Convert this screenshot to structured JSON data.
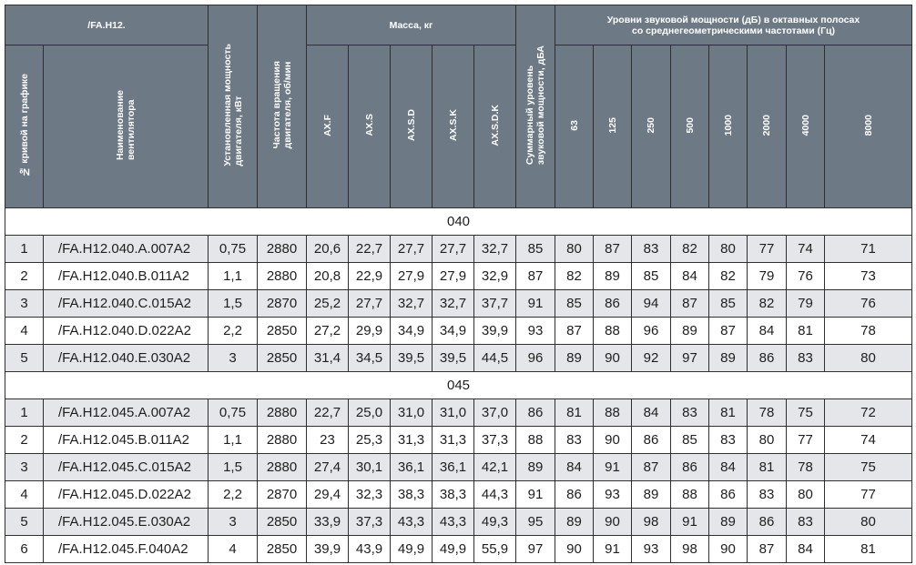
{
  "header": {
    "series": "/FA.H12.",
    "mass_group": "Масса, кг",
    "sound_group_line1": "Уровни звуковой мощности (дБ) в октавных полосах",
    "sound_group_line2": "со среднегеометрическими частотами (Гц)",
    "curve_no": "№ кривой на графике",
    "fan_name_line1": "Наименование",
    "fan_name_line2": "вентилятора",
    "power_line1": "Установленная мощность",
    "power_line2": "двигателя, кВт",
    "speed_line1": "Частота вращения",
    "speed_line2": "двигателя, об/мин",
    "mass_cols": [
      "AX.F",
      "AX.S",
      "AX.S.D",
      "AX.S.K",
      "AX.S.D.K"
    ],
    "total_sound_line1": "Суммарный уровень",
    "total_sound_line2": "звуковой мощности, дБА",
    "freq_cols": [
      "63",
      "125",
      "250",
      "500",
      "1000",
      "2000",
      "4000",
      "8000"
    ]
  },
  "groups": [
    {
      "label": "040",
      "rows": [
        [
          "1",
          "/FA.H12.040.A.007A2",
          "0,75",
          "2880",
          "20,6",
          "22,7",
          "27,7",
          "27,7",
          "32,7",
          "85",
          "80",
          "87",
          "83",
          "82",
          "80",
          "77",
          "74",
          "71"
        ],
        [
          "2",
          "/FA.H12.040.B.011A2",
          "1,1",
          "2880",
          "20,8",
          "22,9",
          "27,9",
          "27,9",
          "32,9",
          "87",
          "82",
          "89",
          "85",
          "84",
          "82",
          "79",
          "76",
          "73"
        ],
        [
          "3",
          "/FA.H12.040.C.015A2",
          "1,5",
          "2870",
          "25,2",
          "27,7",
          "32,7",
          "32,7",
          "37,7",
          "91",
          "85",
          "86",
          "94",
          "87",
          "85",
          "82",
          "79",
          "76"
        ],
        [
          "4",
          "/FA.H12.040.D.022A2",
          "2,2",
          "2850",
          "27,2",
          "29,9",
          "34,9",
          "34,9",
          "39,9",
          "93",
          "87",
          "88",
          "96",
          "89",
          "87",
          "84",
          "81",
          "78"
        ],
        [
          "5",
          "/FA.H12.040.E.030A2",
          "3",
          "2850",
          "31,4",
          "34,5",
          "39,5",
          "39,5",
          "44,5",
          "96",
          "89",
          "90",
          "92",
          "97",
          "89",
          "86",
          "83",
          "80"
        ]
      ]
    },
    {
      "label": "045",
      "rows": [
        [
          "1",
          "/FA.H12.045.A.007A2",
          "0,75",
          "2880",
          "22,7",
          "25,0",
          "31,0",
          "31,0",
          "37,0",
          "86",
          "81",
          "88",
          "84",
          "83",
          "81",
          "78",
          "75",
          "72"
        ],
        [
          "2",
          "/FA.H12.045.B.011A2",
          "1,1",
          "2880",
          "23",
          "25,3",
          "31,3",
          "31,3",
          "37,3",
          "88",
          "83",
          "90",
          "86",
          "85",
          "83",
          "80",
          "77",
          "74"
        ],
        [
          "3",
          "/FA.H12.045.C.015A2",
          "1,5",
          "2880",
          "27,4",
          "30,1",
          "36,1",
          "36,1",
          "42,1",
          "89",
          "84",
          "91",
          "87",
          "86",
          "84",
          "81",
          "78",
          "75"
        ],
        [
          "4",
          "/FA.H12.045.D.022A2",
          "2,2",
          "2870",
          "29,4",
          "32,3",
          "38,3",
          "38,3",
          "44,3",
          "91",
          "86",
          "93",
          "89",
          "88",
          "86",
          "83",
          "80",
          "77"
        ],
        [
          "5",
          "/FA.H12.045.E.030A2",
          "3",
          "2850",
          "33,9",
          "37,3",
          "43,3",
          "43,3",
          "49,3",
          "95",
          "89",
          "90",
          "98",
          "91",
          "89",
          "86",
          "83",
          "80"
        ],
        [
          "6",
          "/FA.H12.045.F.040A2",
          "4",
          "2850",
          "39,9",
          "43,9",
          "49,9",
          "49,9",
          "55,9",
          "97",
          "90",
          "91",
          "93",
          "98",
          "90",
          "87",
          "84",
          "81"
        ]
      ]
    }
  ]
}
